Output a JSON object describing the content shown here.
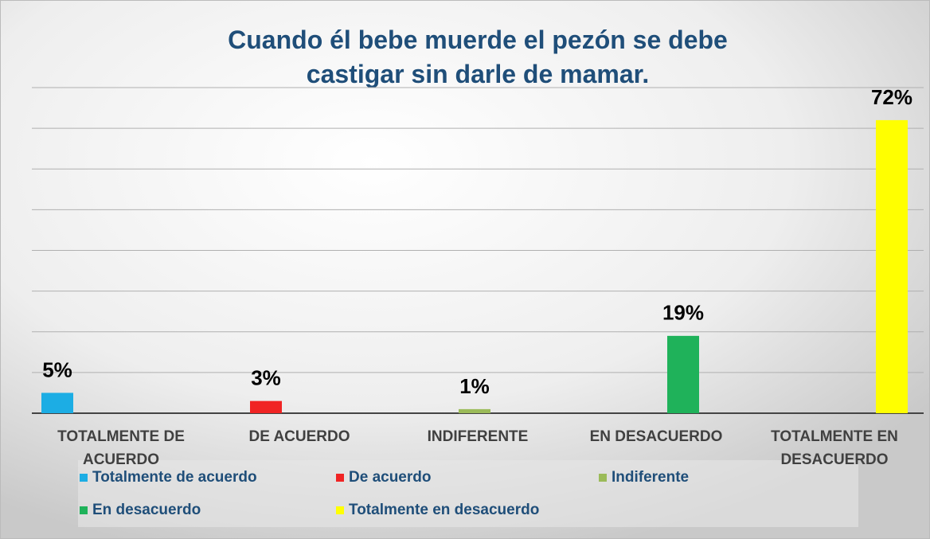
{
  "chart_data": {
    "type": "bar",
    "title": "Cuando él bebe muerde el pezón se debe castigar sin darle de mamar.",
    "categories": [
      "TOTALMENTE DE ACUERDO",
      "DE ACUERDO",
      "INDIFERENTE",
      "EN DESACUERDO",
      "TOTALMENTE EN DESACUERDO"
    ],
    "series": [
      {
        "name": "Totalmente de acuerdo",
        "color": "#1cade4",
        "values": [
          5,
          null,
          null,
          null,
          null
        ],
        "value_labels": [
          "5%",
          null,
          null,
          null,
          null
        ]
      },
      {
        "name": "De acuerdo",
        "color": "#f02424",
        "values": [
          null,
          3,
          null,
          null,
          null
        ],
        "value_labels": [
          null,
          "3%",
          null,
          null,
          null
        ]
      },
      {
        "name": "Indiferente",
        "color": "#9bbb59",
        "values": [
          null,
          null,
          1,
          null,
          null
        ],
        "value_labels": [
          null,
          null,
          "1%",
          null,
          null
        ]
      },
      {
        "name": "En desacuerdo",
        "color": "#1fb25a",
        "values": [
          null,
          null,
          null,
          19,
          null
        ],
        "value_labels": [
          null,
          null,
          null,
          "19%",
          null
        ]
      },
      {
        "name": "Totalmente en desacuerdo",
        "color": "#ffff00",
        "values": [
          null,
          null,
          null,
          null,
          72
        ],
        "value_labels": [
          null,
          null,
          null,
          null,
          "72%"
        ]
      }
    ],
    "ylim": [
      0,
      80
    ],
    "yticks": [
      0,
      10,
      20,
      30,
      40,
      50,
      60,
      70,
      80
    ],
    "grid": true,
    "legend": "bottom"
  }
}
